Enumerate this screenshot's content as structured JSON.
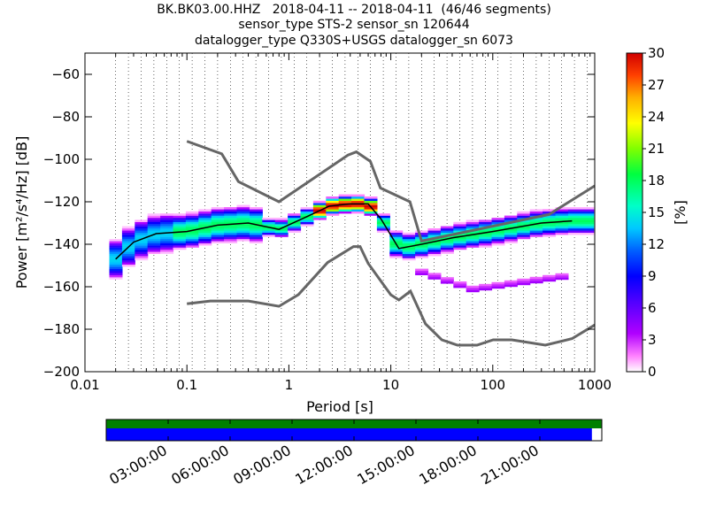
{
  "title": {
    "line1": "BK.BK03.00.HHZ   2018-04-11 -- 2018-04-11  (46/46 segments)",
    "line2": "sensor_type STS-2 sensor_sn 120644",
    "line3": "datalogger_type Q330S+USGS datalogger_sn 6073"
  },
  "chart_data": {
    "type": "heatmap",
    "xlabel": "Period [s]",
    "ylabel": "Power [m²/s⁴/Hz] [dB]",
    "xscale": "log",
    "xlim": [
      0.01,
      1000
    ],
    "ylim": [
      -200,
      -50
    ],
    "xticks": [
      0.01,
      0.1,
      1,
      10,
      100,
      1000
    ],
    "xtick_labels": [
      "0.01",
      "0.1",
      "1",
      "10",
      "100",
      "1000"
    ],
    "yticks": [
      -60,
      -80,
      -100,
      -120,
      -140,
      -160,
      -180,
      -200
    ],
    "ytick_labels": [
      "−60",
      "−80",
      "−100",
      "−120",
      "−140",
      "−160",
      "−180",
      "−200"
    ],
    "grid": "vertical dotted at period bins",
    "colorbar": {
      "label": "[%]",
      "min": 0,
      "max": 30,
      "ticks": [
        0,
        3,
        6,
        9,
        12,
        15,
        18,
        21,
        24,
        27,
        30
      ],
      "tick_labels": [
        "0",
        "3",
        "6",
        "9",
        "12",
        "15",
        "18",
        "21",
        "24",
        "27",
        "30"
      ]
    },
    "mean_curve": {
      "period": [
        0.02,
        0.03,
        0.05,
        0.1,
        0.2,
        0.4,
        0.8,
        1.5,
        2.5,
        4,
        6,
        8,
        12,
        20,
        40,
        100,
        300,
        600
      ],
      "power": [
        -147,
        -139,
        -135,
        -134,
        -131,
        -130,
        -133,
        -127,
        -122,
        -121,
        -121,
        -128,
        -142,
        -140,
        -137,
        -134,
        -130,
        -129
      ]
    },
    "nhnm": {
      "period": [
        0.1,
        0.22,
        0.32,
        0.8,
        3.8,
        4.6,
        6.3,
        7.9,
        15.4,
        20,
        354.8,
        1000
      ],
      "power": [
        -91.5,
        -97.4,
        -110.5,
        -120,
        -98,
        -96.5,
        -101,
        -113.5,
        -120,
        -138.5,
        -126,
        -112.5
      ]
    },
    "nlnm": {
      "period": [
        0.1,
        0.17,
        0.4,
        0.8,
        1.24,
        2.4,
        4.3,
        5,
        6,
        10,
        12,
        15.6,
        21.9,
        31.6,
        45,
        70,
        101,
        154,
        328,
        600,
        1000
      ],
      "power": [
        -168,
        -166.7,
        -166.7,
        -169.2,
        -163.7,
        -148.6,
        -141.1,
        -141.1,
        -149,
        -163.8,
        -166.2,
        -162.1,
        -177.5,
        -185,
        -187.5,
        -187.5,
        -185,
        -185,
        -187.5,
        -184.4,
        -178
      ]
    },
    "series_colors": {
      "mean": "#000000",
      "noise_models": "#666666"
    },
    "data_availability": {
      "time_labels": [
        "03:00:00",
        "06:00:00",
        "09:00:00",
        "12:00:00",
        "15:00:00",
        "18:00:00",
        "21:00:00"
      ],
      "coverage_fraction": 0.98,
      "colors": {
        "top": "#008000",
        "bottom": "#0000ff"
      }
    }
  }
}
